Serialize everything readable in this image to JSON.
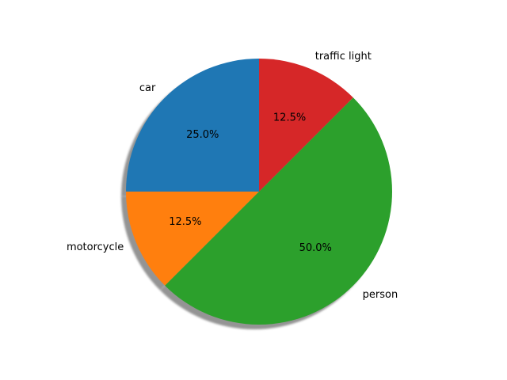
{
  "chart_data": {
    "type": "pie",
    "categories": [
      "car",
      "motorcycle",
      "person",
      "traffic light"
    ],
    "values": [
      25.0,
      12.5,
      50.0,
      12.5
    ],
    "percent_labels": [
      "25.0%",
      "12.5%",
      "50.0%",
      "12.5%"
    ],
    "colors": [
      "#1f77b4",
      "#ff7f0e",
      "#2ca02c",
      "#d62728"
    ],
    "start_angle_deg": 90,
    "direction": "counterclockwise",
    "shadow": true,
    "title": "",
    "legend": "none"
  }
}
